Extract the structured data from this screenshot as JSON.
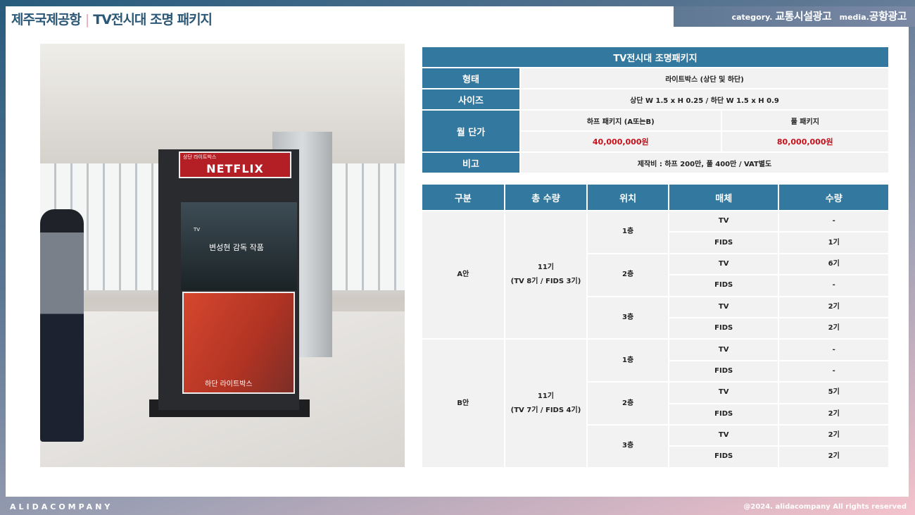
{
  "header": {
    "location": "제주국제공항",
    "separator": "|",
    "title": "TV전시대 조명 패키지",
    "category_label": "category.",
    "category": "교통시설광고",
    "media_label": "media.",
    "media": "공항광고"
  },
  "photo": {
    "top_sign": "상단 라이트박스",
    "brand": "NETFLIX",
    "tv_label": "TV",
    "tv_text": "변성현 감독 작품",
    "bottom_sign": "하단 라이트박스"
  },
  "spec": {
    "title": "TV전시대 조명패키지",
    "rows": [
      {
        "label": "형태",
        "value": "라이트박스 (상단 및 하단)"
      },
      {
        "label": "사이즈",
        "value": "상단 W 1.5 x H 0.25 / 하단 W 1.5  x H 0.9"
      }
    ],
    "price": {
      "label": "월 단가",
      "half_label": "하프 패키지 (A또는B)",
      "full_label": "풀 패키지",
      "half_price": "40,000,000원",
      "full_price": "80,000,000원"
    },
    "note": {
      "label": "비고",
      "value": "제작비 : 하프 200만, 풀 400만 / VAT별도"
    }
  },
  "inventory": {
    "headers": [
      "구분",
      "총 수량",
      "위치",
      "매체",
      "수량"
    ],
    "plans": [
      {
        "name": "A안",
        "total": "11기",
        "breakdown": "(TV 8기 / FIDS 3기)",
        "floors": [
          {
            "floor": "1층",
            "items": [
              [
                "TV",
                "-"
              ],
              [
                "FIDS",
                "1기"
              ]
            ]
          },
          {
            "floor": "2층",
            "items": [
              [
                "TV",
                "6기"
              ],
              [
                "FIDS",
                "-"
              ]
            ]
          },
          {
            "floor": "3층",
            "items": [
              [
                "TV",
                "2기"
              ],
              [
                "FIDS",
                "2기"
              ]
            ]
          }
        ]
      },
      {
        "name": "B안",
        "total": "11기",
        "breakdown": "(TV 7기 / FIDS 4기)",
        "floors": [
          {
            "floor": "1층",
            "items": [
              [
                "TV",
                "-"
              ],
              [
                "FIDS",
                "-"
              ]
            ]
          },
          {
            "floor": "2층",
            "items": [
              [
                "TV",
                "5기"
              ],
              [
                "FIDS",
                "2기"
              ]
            ]
          },
          {
            "floor": "3층",
            "items": [
              [
                "TV",
                "2기"
              ],
              [
                "FIDS",
                "2기"
              ]
            ]
          }
        ]
      }
    ]
  },
  "footer": {
    "brand": "ALIDACOMPANY",
    "copyright": "@2024. alidacompany All rights reserved"
  },
  "colors": {
    "accent": "#33789e",
    "price": "#c8101a",
    "title": "#2b5877"
  }
}
